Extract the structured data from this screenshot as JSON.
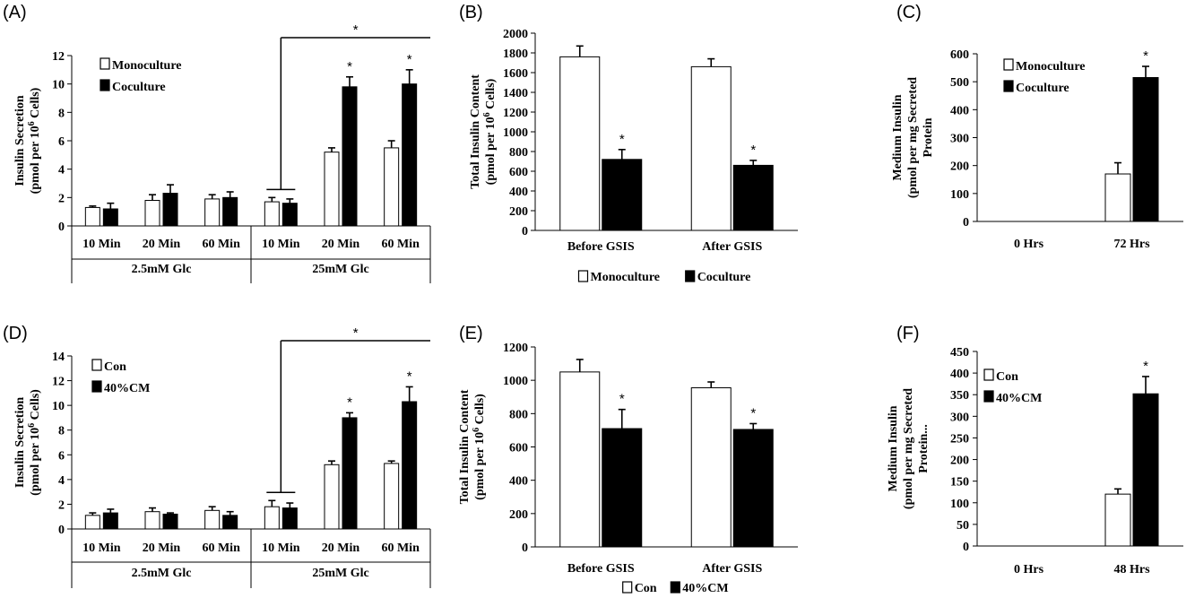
{
  "chart_data": [
    {
      "panel": "(A)",
      "type": "bar",
      "ylabel": [
        "Insulin Secretion",
        "(pmol per 10",
        "6",
        " Cells)"
      ],
      "ylim": [
        0,
        12
      ],
      "yticks": [
        0,
        2,
        4,
        6,
        8,
        10,
        12
      ],
      "categories": [
        "10 Min",
        "20 Min",
        "60 Min",
        "10 Min",
        "20 Min",
        "60 Min"
      ],
      "groups": [
        {
          "label": "2.5mM Glc",
          "span": [
            0,
            2
          ]
        },
        {
          "label": "25mM Glc",
          "span": [
            3,
            5
          ]
        }
      ],
      "series": [
        {
          "name": "Monoculture",
          "fill": "white",
          "values": [
            1.3,
            1.8,
            1.9,
            1.7,
            5.2,
            5.5
          ],
          "errors": [
            0.1,
            0.4,
            0.3,
            0.3,
            0.3,
            0.5
          ]
        },
        {
          "name": "Coculture",
          "fill": "black",
          "values": [
            1.2,
            2.3,
            2.0,
            1.6,
            9.8,
            10.0
          ],
          "errors": [
            0.4,
            0.6,
            0.4,
            0.3,
            0.7,
            1.0
          ]
        }
      ],
      "stars": [
        4,
        5
      ],
      "bracket_star": true,
      "legend": "top-left"
    },
    {
      "panel": "(B)",
      "type": "bar",
      "ylabel": [
        "Total Insulin Content",
        "(pmol per 10",
        "6",
        " Cells)"
      ],
      "ylim": [
        0,
        2000
      ],
      "yticks": [
        0,
        200,
        400,
        600,
        800,
        1000,
        1200,
        1400,
        1600,
        1800,
        2000
      ],
      "categories": [
        "Before GSIS",
        "After GSIS"
      ],
      "series": [
        {
          "name": "Monoculture",
          "fill": "white",
          "values": [
            1760,
            1660
          ],
          "errors": [
            110,
            80
          ]
        },
        {
          "name": "Coculture",
          "fill": "black",
          "values": [
            720,
            660
          ],
          "errors": [
            100,
            50
          ]
        }
      ],
      "stars": [
        0,
        1
      ],
      "legend": "bottom"
    },
    {
      "panel": "(C)",
      "type": "bar",
      "ylabel": [
        "Medium Insulin",
        "(pmol per mg Secreted",
        "Protein"
      ],
      "ylim": [
        0,
        600
      ],
      "yticks": [
        0,
        100,
        200,
        300,
        400,
        500,
        600
      ],
      "categories": [
        "0 Hrs",
        "72 Hrs"
      ],
      "series": [
        {
          "name": "Monoculture",
          "fill": "white",
          "values": [
            0,
            170
          ],
          "errors": [
            0,
            40
          ]
        },
        {
          "name": "Coculture",
          "fill": "black",
          "values": [
            0,
            515
          ],
          "errors": [
            0,
            40
          ]
        }
      ],
      "stars": [
        1
      ],
      "legend": "top-left"
    },
    {
      "panel": "(D)",
      "type": "bar",
      "ylabel": [
        "Insulin Secretion",
        "(pmol per 10",
        "6",
        " Cells)"
      ],
      "ylim": [
        0,
        14
      ],
      "yticks": [
        0,
        2,
        4,
        6,
        8,
        10,
        12,
        14
      ],
      "categories": [
        "10 Min",
        "20 Min",
        "60 Min",
        "10 Min",
        "20 Min",
        "60 Min"
      ],
      "groups": [
        {
          "label": "2.5mM Glc",
          "span": [
            0,
            2
          ]
        },
        {
          "label": "25mM Glc",
          "span": [
            3,
            5
          ]
        }
      ],
      "series": [
        {
          "name": "Con",
          "fill": "white",
          "values": [
            1.1,
            1.4,
            1.5,
            1.8,
            5.2,
            5.3
          ],
          "errors": [
            0.2,
            0.3,
            0.3,
            0.5,
            0.3,
            0.2
          ]
        },
        {
          "name": "40%CM",
          "fill": "black",
          "values": [
            1.3,
            1.2,
            1.1,
            1.7,
            9.0,
            10.3
          ],
          "errors": [
            0.3,
            0.1,
            0.3,
            0.4,
            0.4,
            1.2
          ]
        }
      ],
      "stars": [
        4,
        5
      ],
      "bracket_star": true,
      "legend": "top-left"
    },
    {
      "panel": "(E)",
      "type": "bar",
      "ylabel": [
        "Total Insulin Content",
        "(pmol per 10",
        "6",
        " Cells)"
      ],
      "ylim": [
        0,
        1200
      ],
      "yticks": [
        0,
        200,
        400,
        600,
        800,
        1000,
        1200
      ],
      "categories": [
        "Before GSIS",
        "After GSIS"
      ],
      "series": [
        {
          "name": "Con",
          "fill": "white",
          "values": [
            1050,
            955
          ],
          "errors": [
            75,
            35
          ]
        },
        {
          "name": "40%CM",
          "fill": "black",
          "values": [
            710,
            705
          ],
          "errors": [
            115,
            35
          ]
        }
      ],
      "stars": [
        0,
        1
      ],
      "legend": "bottom"
    },
    {
      "panel": "(F)",
      "type": "bar",
      "ylabel": [
        "Medium Insulin",
        "(pmol per mg Secreted",
        "Protein..."
      ],
      "ylim": [
        0,
        450
      ],
      "yticks": [
        0,
        50,
        100,
        150,
        200,
        250,
        300,
        350,
        400,
        450
      ],
      "categories": [
        "0 Hrs",
        "48 Hrs"
      ],
      "series": [
        {
          "name": "Con",
          "fill": "white",
          "values": [
            0,
            120
          ],
          "errors": [
            0,
            12
          ]
        },
        {
          "name": "40%CM",
          "fill": "black",
          "values": [
            0,
            352
          ],
          "errors": [
            0,
            40
          ]
        }
      ],
      "stars": [
        1
      ],
      "legend": "top-left"
    }
  ]
}
